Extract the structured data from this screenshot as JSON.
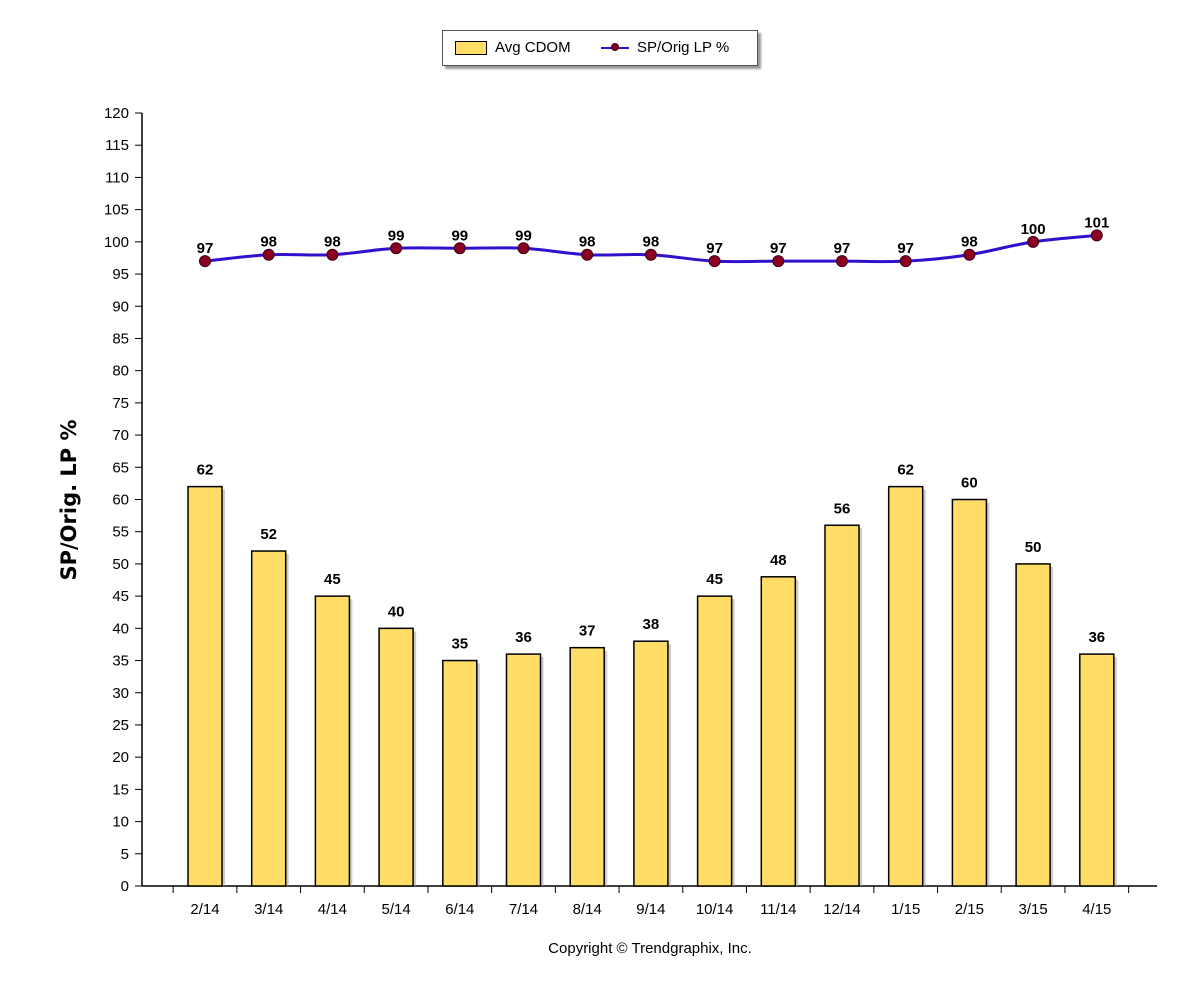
{
  "chart_data": {
    "type": "bar",
    "categories": [
      "2/14",
      "3/14",
      "4/14",
      "5/14",
      "6/14",
      "7/14",
      "8/14",
      "9/14",
      "10/14",
      "11/14",
      "12/14",
      "1/15",
      "2/15",
      "3/15",
      "4/15"
    ],
    "series": [
      {
        "name": "Avg CDOM",
        "type": "bar",
        "values": [
          62,
          52,
          45,
          40,
          35,
          36,
          37,
          38,
          45,
          48,
          56,
          62,
          60,
          50,
          36
        ]
      },
      {
        "name": "SP/Orig LP %",
        "type": "line",
        "values": [
          97,
          98,
          98,
          99,
          99,
          99,
          98,
          98,
          97,
          97,
          97,
          97,
          98,
          100,
          101
        ]
      }
    ],
    "ylabel": "SP/Orig. LP %",
    "xlabel": "",
    "ylim": [
      0,
      120
    ],
    "yticks": [
      0,
      5,
      10,
      15,
      20,
      25,
      30,
      35,
      40,
      45,
      50,
      55,
      60,
      65,
      70,
      75,
      80,
      85,
      90,
      95,
      100,
      105,
      110,
      115,
      120
    ],
    "grid": false,
    "legend_position": "top-center",
    "colors": {
      "bar_fill": "#FFDD66",
      "bar_stroke": "#000000",
      "line": "#3311CC",
      "marker": "#8B0022"
    }
  },
  "copyright": "Copyright © Trendgraphix, Inc."
}
